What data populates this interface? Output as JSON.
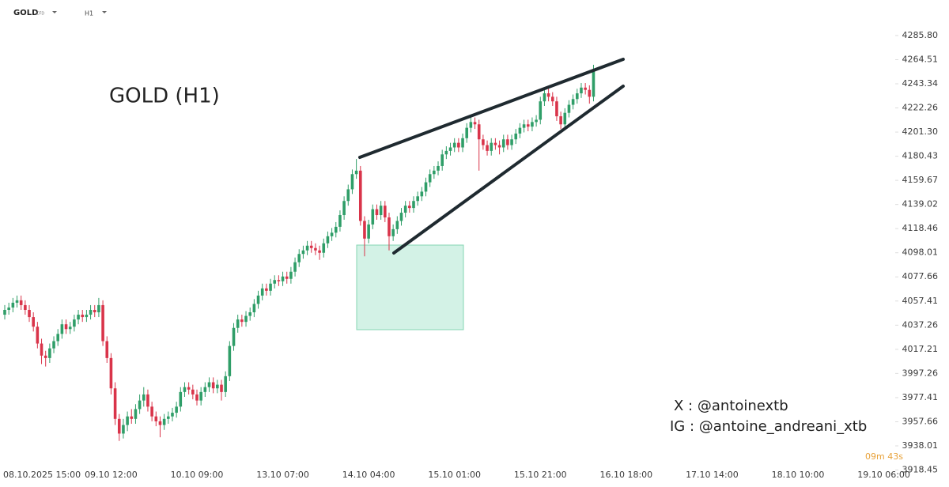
{
  "toolbar": {
    "symbol": "GOLD",
    "symbol_tag": "CFD",
    "timeframe": "H1"
  },
  "chart_data": {
    "type": "candlestick",
    "title": "GOLD (H1)",
    "annotations": [
      "X : @antoinextb",
      "IG : @antoine_andreani_xtb"
    ],
    "countdown": "09m 43s",
    "up_color": "#2f9e68",
    "down_color": "#d9344a",
    "log": true,
    "ylim": [
      3917.5,
      4317.3
    ],
    "yticks": [
      {
        "value": 4285.8,
        "label": "4285.80"
      },
      {
        "value": 4264.51,
        "label": "4264.51"
      },
      {
        "value": 4243.34,
        "label": "4243.34"
      },
      {
        "value": 4222.26,
        "label": "4222.26"
      },
      {
        "value": 4201.3,
        "label": "4201.30"
      },
      {
        "value": 4180.43,
        "label": "4180.43"
      },
      {
        "value": 4159.67,
        "label": "4159.67"
      },
      {
        "value": 4139.02,
        "label": "4139.02"
      },
      {
        "value": 4118.46,
        "label": "4118.46"
      },
      {
        "value": 4098.01,
        "label": "4098.01"
      },
      {
        "value": 4077.66,
        "label": "4077.66"
      },
      {
        "value": 4057.41,
        "label": "4057.41"
      },
      {
        "value": 4037.26,
        "label": "4037.26"
      },
      {
        "value": 4017.21,
        "label": "4017.21"
      },
      {
        "value": 3997.26,
        "label": "3997.26"
      },
      {
        "value": 3977.41,
        "label": "3977.41"
      },
      {
        "value": 3957.66,
        "label": "3957.66"
      },
      {
        "value": 3938.01,
        "label": "3938.01"
      },
      {
        "value": 3918.45,
        "label": "3918.45"
      }
    ],
    "categories": [
      null,
      null,
      null,
      null,
      null,
      "08.10.2025 15:00",
      null,
      null,
      null,
      null,
      null,
      null,
      null,
      null,
      null,
      null,
      null,
      null,
      null,
      null,
      null,
      null,
      null,
      null,
      null,
      null,
      "09.10 12:00",
      null,
      null,
      null,
      null,
      null,
      null,
      null,
      null,
      null,
      null,
      null,
      null,
      null,
      null,
      null,
      null,
      null,
      null,
      null,
      null,
      "10.10 09:00",
      null,
      null,
      null,
      null,
      null,
      null,
      null,
      null,
      null,
      null,
      null,
      null,
      null,
      null,
      null,
      null,
      null,
      null,
      null,
      null,
      "13.10 07:00",
      null,
      null,
      null,
      null,
      null,
      null,
      null,
      null,
      null,
      null,
      null,
      null,
      null,
      null,
      null,
      null,
      null,
      null,
      null,
      null,
      "14.10 04:00",
      null,
      null,
      null,
      null,
      null,
      null,
      null,
      null,
      null,
      null,
      null,
      null,
      null,
      null,
      null,
      null,
      null,
      null,
      null,
      null,
      "15.10 01:00",
      null,
      null,
      null,
      null,
      null,
      null,
      null,
      null,
      null,
      null,
      null,
      null,
      null,
      null,
      null,
      null,
      null,
      null,
      null,
      null,
      "15.10 21:00",
      null,
      null,
      null,
      null,
      null,
      null,
      null,
      null,
      null,
      null,
      null,
      null,
      null,
      null,
      null,
      null,
      null,
      null,
      null,
      null,
      "16.10 18:00",
      null,
      null,
      null,
      null,
      null,
      null,
      null,
      null,
      null,
      null,
      null,
      null,
      null,
      null,
      null,
      null,
      null,
      null,
      null,
      null,
      "17.10 14:00",
      null,
      null,
      null,
      null,
      null,
      null,
      null,
      null,
      null,
      null,
      null,
      null,
      null,
      null,
      null,
      null,
      null,
      null,
      null,
      null,
      "18.10 10:00",
      null,
      null,
      null,
      null,
      null,
      null,
      null,
      null,
      null,
      null,
      null,
      null,
      null,
      null,
      null,
      null,
      null,
      null,
      null,
      null,
      "19.10 06:00"
    ],
    "open": [
      4046,
      4050,
      4052,
      4056,
      4058,
      4054,
      4050,
      4044,
      4036,
      4022,
      4012,
      4010,
      4018,
      4024,
      4030,
      4038,
      4034,
      4036,
      4042,
      4046,
      4044,
      4046,
      4050,
      4048,
      4054,
      4024,
      4010,
      3985,
      3960,
      3948,
      3955,
      3962,
      3960,
      3968,
      3975,
      3980,
      3970,
      3962,
      3958,
      3955,
      3960,
      3962,
      3965,
      3970,
      3982,
      3986,
      3984,
      3980,
      3975,
      3982,
      3986,
      3990,
      3985,
      3988,
      3982,
      3995,
      4020,
      4035,
      4042,
      4040,
      4045,
      4048,
      4055,
      4062,
      4068,
      4066,
      4072,
      4075,
      4074,
      4078,
      4076,
      4082,
      4090,
      4097,
      4100,
      4104,
      4102,
      4100,
      4098,
      4106,
      4112,
      4115,
      4120,
      4130,
      4142,
      4152,
      4165,
      4168,
      4125,
      4110,
      4122,
      4135,
      4130,
      4138,
      4128,
      4112,
      4118,
      4125,
      4132,
      4138,
      4136,
      4142,
      4146,
      4150,
      4158,
      4165,
      4168,
      4172,
      4182,
      4185,
      4188,
      4192,
      4188,
      4196,
      4205,
      4210,
      4208,
      4195,
      4190,
      4185,
      4192,
      4190,
      4188,
      4195,
      4190,
      4195,
      4200,
      4205,
      4208,
      4206,
      4210,
      4212,
      4228,
      4235,
      4232,
      4228,
      4215,
      4208,
      4218,
      4225,
      4230,
      4235,
      4240,
      4238,
      4232,
      null,
      null,
      null,
      null,
      null,
      null,
      null,
      null,
      null,
      null,
      null,
      null,
      null,
      null,
      null,
      null,
      null,
      null,
      null,
      null,
      null,
      null,
      null,
      null,
      null,
      null,
      null,
      null,
      null,
      null,
      null,
      null,
      null,
      null,
      null,
      null,
      null,
      null,
      null,
      null,
      null,
      null,
      null,
      null,
      null,
      null,
      null,
      null,
      null,
      null,
      null,
      null,
      null,
      null,
      null,
      null,
      null,
      null,
      null,
      null,
      null,
      null,
      null,
      null,
      null,
      null,
      null,
      null,
      null,
      null,
      null
    ],
    "high": [
      4054,
      4056,
      4060,
      4062,
      4062,
      4058,
      4054,
      4048,
      4040,
      4026,
      4016,
      4022,
      4028,
      4034,
      4042,
      4042,
      4040,
      4046,
      4050,
      4050,
      4050,
      4054,
      4054,
      4060,
      4058,
      4028,
      4014,
      3990,
      3964,
      3960,
      3966,
      3968,
      3972,
      3980,
      3986,
      3984,
      3974,
      3966,
      3962,
      3964,
      3966,
      3969,
      3974,
      3986,
      3990,
      3990,
      3988,
      3984,
      3986,
      3990,
      3994,
      3994,
      3992,
      3992,
      3999,
      4024,
      4039,
      4046,
      4046,
      4049,
      4052,
      4059,
      4066,
      4072,
      4072,
      4076,
      4079,
      4079,
      4082,
      4082,
      4086,
      4094,
      4101,
      4104,
      4108,
      4108,
      4106,
      4104,
      4110,
      4116,
      4119,
      4124,
      4134,
      4146,
      4156,
      4169,
      4178,
      4172,
      4129,
      4126,
      4139,
      4139,
      4142,
      4142,
      4132,
      4122,
      4129,
      4136,
      4142,
      4142,
      4146,
      4150,
      4154,
      4162,
      4169,
      4172,
      4176,
      4186,
      4189,
      4192,
      4196,
      4196,
      4200,
      4209,
      4215,
      4214,
      4212,
      4199,
      4194,
      4196,
      4196,
      4194,
      4199,
      4199,
      4199,
      4204,
      4209,
      4212,
      4212,
      4214,
      4216,
      4232,
      4239,
      4239,
      4236,
      4232,
      4219,
      4222,
      4229,
      4234,
      4239,
      4244,
      4244,
      4242,
      4260,
      null,
      null,
      null,
      null,
      null,
      null,
      null,
      null,
      null,
      null,
      null,
      null,
      null,
      null,
      null,
      null,
      null,
      null,
      null,
      null,
      null,
      null,
      null,
      null,
      null,
      null,
      null,
      null,
      null,
      null,
      null,
      null,
      null,
      null,
      null,
      null,
      null,
      null,
      null,
      null,
      null,
      null,
      null,
      null,
      null,
      null,
      null,
      null,
      null,
      null,
      null,
      null,
      null,
      null,
      null,
      null,
      null,
      null,
      null,
      null,
      null,
      null,
      null,
      null,
      null,
      null,
      null,
      null,
      null,
      null,
      null
    ],
    "low": [
      4042,
      4046,
      4048,
      4052,
      4050,
      4046,
      4040,
      4032,
      4018,
      4005,
      4003,
      4006,
      4014,
      4020,
      4026,
      4030,
      4030,
      4032,
      4038,
      4040,
      4040,
      4042,
      4044,
      4044,
      4020,
      4006,
      3980,
      3955,
      3942,
      3944,
      3950,
      3956,
      3956,
      3964,
      3970,
      3966,
      3958,
      3954,
      3945,
      3951,
      3956,
      3958,
      3961,
      3966,
      3978,
      3980,
      3976,
      3971,
      3971,
      3978,
      3982,
      3981,
      3981,
      3975,
      3978,
      3991,
      4016,
      4031,
      4036,
      4036,
      4041,
      4044,
      4051,
      4058,
      4062,
      4062,
      4068,
      4070,
      4070,
      4072,
      4072,
      4078,
      4086,
      4093,
      4096,
      4098,
      4096,
      4092,
      4094,
      4102,
      4108,
      4111,
      4116,
      4126,
      4138,
      4148,
      4161,
      4121,
      4095,
      4106,
      4118,
      4126,
      4126,
      4124,
      4100,
      4108,
      4114,
      4121,
      4128,
      4132,
      4132,
      4138,
      4142,
      4146,
      4154,
      4161,
      4164,
      4168,
      4178,
      4181,
      4184,
      4184,
      4184,
      4192,
      4201,
      4204,
      4168,
      4186,
      4181,
      4181,
      4186,
      4182,
      4184,
      4186,
      4186,
      4191,
      4196,
      4201,
      4202,
      4202,
      4206,
      4208,
      4224,
      4228,
      4224,
      4211,
      4204,
      4204,
      4214,
      4221,
      4226,
      4231,
      4234,
      4226,
      4228,
      null,
      null,
      null,
      null,
      null,
      null,
      null,
      null,
      null,
      null,
      null,
      null,
      null,
      null,
      null,
      null,
      null,
      null,
      null,
      null,
      null,
      null,
      null,
      null,
      null,
      null,
      null,
      null,
      null,
      null,
      null,
      null,
      null,
      null,
      null,
      null,
      null,
      null,
      null,
      null,
      null,
      null,
      null,
      null,
      null,
      null,
      null,
      null,
      null,
      null,
      null,
      null,
      null,
      null,
      null,
      null,
      null,
      null,
      null,
      null,
      null,
      null,
      null,
      null,
      null,
      null,
      null,
      null,
      null,
      null,
      null
    ],
    "close": [
      4050,
      4052,
      4056,
      4058,
      4054,
      4050,
      4044,
      4036,
      4022,
      4012,
      4010,
      4018,
      4024,
      4030,
      4038,
      4034,
      4036,
      4042,
      4046,
      4044,
      4046,
      4050,
      4048,
      4054,
      4024,
      4010,
      3985,
      3960,
      3948,
      3955,
      3962,
      3960,
      3968,
      3975,
      3980,
      3970,
      3962,
      3958,
      3955,
      3960,
      3962,
      3965,
      3970,
      3982,
      3986,
      3984,
      3980,
      3975,
      3982,
      3986,
      3990,
      3985,
      3988,
      3982,
      3995,
      4020,
      4035,
      4042,
      4040,
      4045,
      4048,
      4055,
      4062,
      4068,
      4066,
      4072,
      4075,
      4074,
      4078,
      4076,
      4082,
      4090,
      4097,
      4100,
      4104,
      4102,
      4100,
      4098,
      4106,
      4112,
      4115,
      4120,
      4130,
      4142,
      4152,
      4165,
      4168,
      4125,
      4110,
      4122,
      4135,
      4130,
      4138,
      4128,
      4112,
      4118,
      4125,
      4132,
      4138,
      4136,
      4142,
      4146,
      4150,
      4158,
      4165,
      4168,
      4172,
      4182,
      4185,
      4188,
      4192,
      4188,
      4196,
      4205,
      4210,
      4208,
      4195,
      4190,
      4185,
      4192,
      4190,
      4188,
      4195,
      4190,
      4195,
      4200,
      4205,
      4208,
      4206,
      4210,
      4212,
      4228,
      4235,
      4232,
      4228,
      4215,
      4208,
      4218,
      4225,
      4230,
      4235,
      4240,
      4238,
      4232,
      4255,
      null,
      null,
      null,
      null,
      null,
      null,
      null,
      null,
      null,
      null,
      null,
      null,
      null,
      null,
      null,
      null,
      null,
      null,
      null,
      null,
      null,
      null,
      null,
      null,
      null,
      null,
      null,
      null,
      null,
      null,
      null,
      null,
      null,
      null,
      null,
      null,
      null,
      null,
      null,
      null,
      null,
      null,
      null,
      null,
      null,
      null,
      null,
      null,
      null,
      null,
      null,
      null,
      null,
      null,
      null,
      null,
      null,
      null,
      null,
      null,
      null,
      null,
      null,
      null,
      null,
      null,
      null,
      null,
      null,
      null,
      null
    ]
  }
}
